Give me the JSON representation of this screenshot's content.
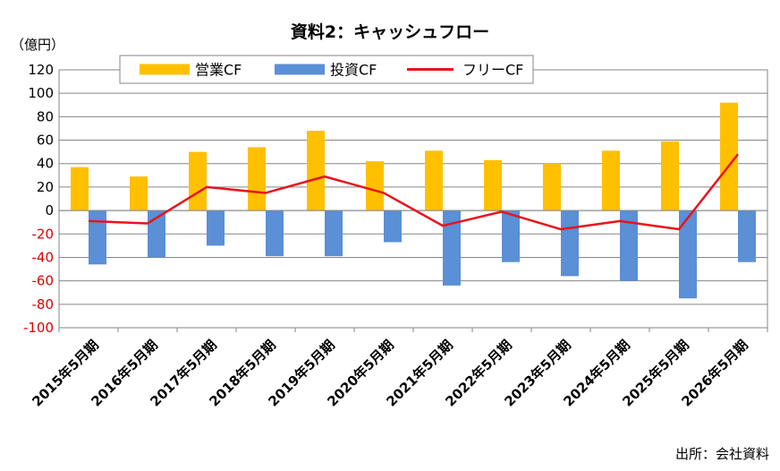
{
  "chart_data": {
    "type": "bar",
    "title": "資料2：キャッシュフロー",
    "unit_label": "（億円）",
    "source": "出所：会社資料",
    "categories": [
      "2015年5月期",
      "2016年5月期",
      "2017年5月期",
      "2018年5月期",
      "2019年5月期",
      "2020年5月期",
      "2021年5月期",
      "2022年5月期",
      "2023年5月期",
      "2024年5月期",
      "2025年5月期",
      "2026年5月期"
    ],
    "ylim": [
      -100,
      120
    ],
    "yticks": [
      120,
      100,
      80,
      60,
      40,
      20,
      0,
      -20,
      -40,
      -60,
      -80,
      -100
    ],
    "grid": true,
    "legend_position": "top",
    "series": [
      {
        "name": "営業CF",
        "kind": "bar",
        "color": "#FFC000",
        "values": [
          37,
          29,
          50,
          54,
          68,
          42,
          51,
          43,
          40,
          51,
          59,
          92
        ]
      },
      {
        "name": "投資CF",
        "kind": "bar",
        "color": "#5B8FD6",
        "values": [
          -46,
          -40,
          -30,
          -39,
          -39,
          -27,
          -64,
          -44,
          -56,
          -60,
          -75,
          -44
        ]
      },
      {
        "name": "フリーCF",
        "kind": "line",
        "color": "#E8141B",
        "values": [
          -9,
          -11,
          20,
          15,
          29,
          15,
          -13,
          -1,
          -16,
          -9,
          -16,
          48
        ]
      }
    ]
  }
}
